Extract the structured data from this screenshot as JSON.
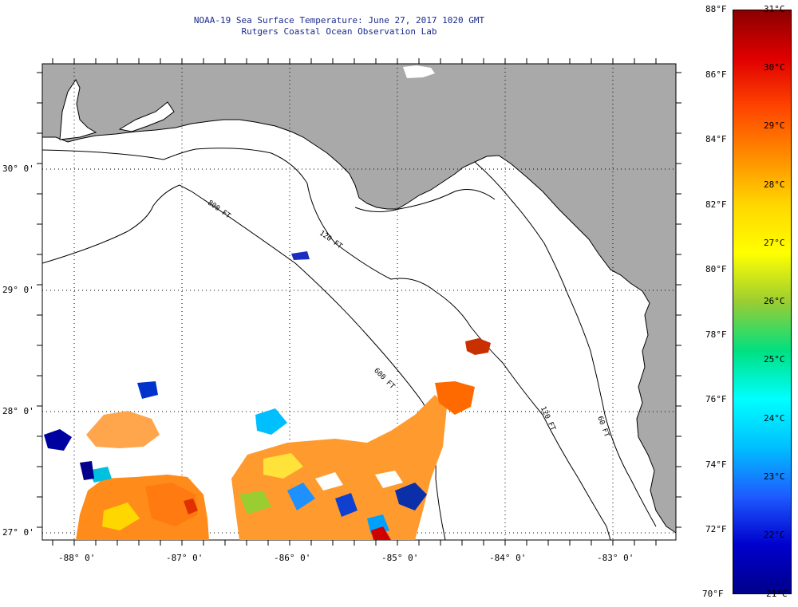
{
  "header": {
    "title_line1": "NOAA-19 Sea Surface Temperature:  June 27, 2017 1020 GMT",
    "title_line2": "Rutgers Coastal Ocean Observation Lab"
  },
  "map": {
    "lat_labels": [
      "30° 0'",
      "29° 0'",
      "28° 0'",
      "27° 0'"
    ],
    "lon_labels": [
      "-88° 0'",
      "-87° 0'",
      "-86° 0'",
      "-85° 0'",
      "-84° 0'",
      "-83° 0'"
    ],
    "isobath_labels": [
      "800 FT",
      "120 FT",
      "600 FT",
      "120 FT",
      "60 FT"
    ],
    "colors": {
      "land": "#a9a9a9",
      "ocean": "#ffffff",
      "grid": "#000000"
    }
  },
  "colorbar": {
    "fahrenheit": [
      "88°F",
      "86°F",
      "84°F",
      "82°F",
      "80°F",
      "78°F",
      "76°F",
      "74°F",
      "72°F",
      "70°F"
    ],
    "celsius": [
      "31°C",
      "30°C",
      "29°C",
      "28°C",
      "27°C",
      "26°C",
      "25°C",
      "24°C",
      "23°C",
      "22°C",
      "21°C"
    ],
    "stops": [
      "#8b0000",
      "#e00000",
      "#ff4500",
      "#ff8c00",
      "#ffd700",
      "#ffff00",
      "#9acd32",
      "#00e080",
      "#00ffff",
      "#00bfff",
      "#1e5bff",
      "#0000cd",
      "#00008b"
    ]
  }
}
